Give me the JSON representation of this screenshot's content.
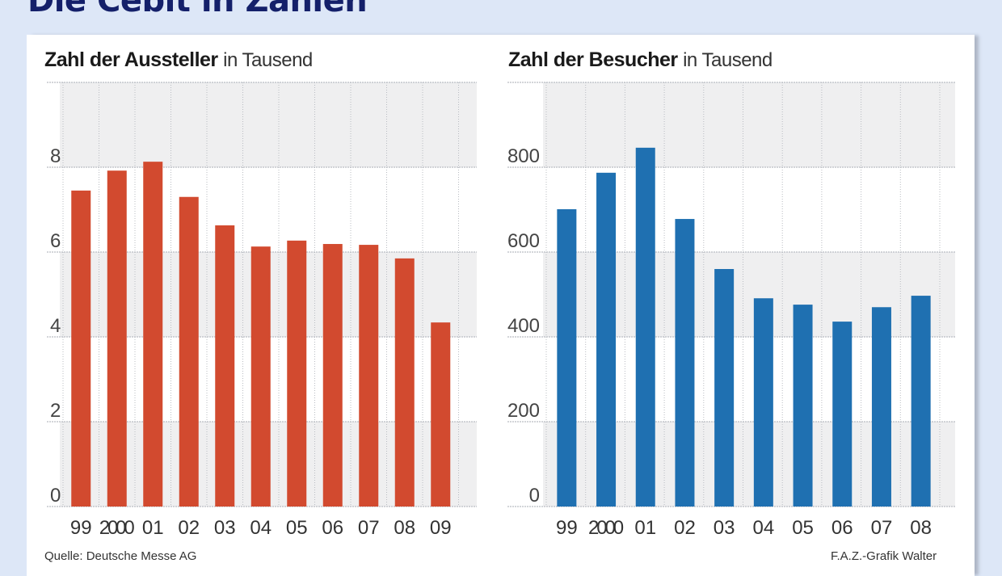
{
  "headline": "Die Cebit in Zahlen",
  "source": "Quelle: Deutsche Messe AG",
  "credit": "F.A.Z.-Grafik Walter",
  "colors": {
    "background": "#dde7f7",
    "headline": "#14206a",
    "exhibitors_bar": "#d24a2f",
    "visitors_bar": "#1f70b1",
    "band": "#efeff0"
  },
  "chart_data": [
    {
      "type": "bar",
      "title": "Zahl der Aussteller",
      "subtitle": "in Tausend",
      "xlabel": "",
      "ylabel": "",
      "categories": [
        "99",
        "2000",
        "01",
        "02",
        "03",
        "04",
        "05",
        "06",
        "07",
        "08",
        "09"
      ],
      "values": [
        7.45,
        7.92,
        8.13,
        7.3,
        6.63,
        6.13,
        6.27,
        6.19,
        6.17,
        5.85,
        4.34
      ],
      "yticks": [
        "0",
        "2",
        "4",
        "6",
        "8"
      ],
      "ytick_values": [
        0,
        2,
        4,
        6,
        8
      ],
      "ylim": [
        0,
        10
      ],
      "grid": true
    },
    {
      "type": "bar",
      "title": "Zahl der Besucher",
      "subtitle": "in Tausend",
      "xlabel": "",
      "ylabel": "",
      "categories": [
        "99",
        "2000",
        "01",
        "02",
        "03",
        "04",
        "05",
        "06",
        "07",
        "08"
      ],
      "values": [
        701,
        787,
        846,
        678,
        560,
        491,
        476,
        436,
        470,
        497
      ],
      "yticks": [
        "0",
        "200",
        "400",
        "600",
        "800"
      ],
      "ytick_values": [
        0,
        200,
        400,
        600,
        800
      ],
      "ylim": [
        0,
        1000
      ],
      "grid": true
    }
  ]
}
